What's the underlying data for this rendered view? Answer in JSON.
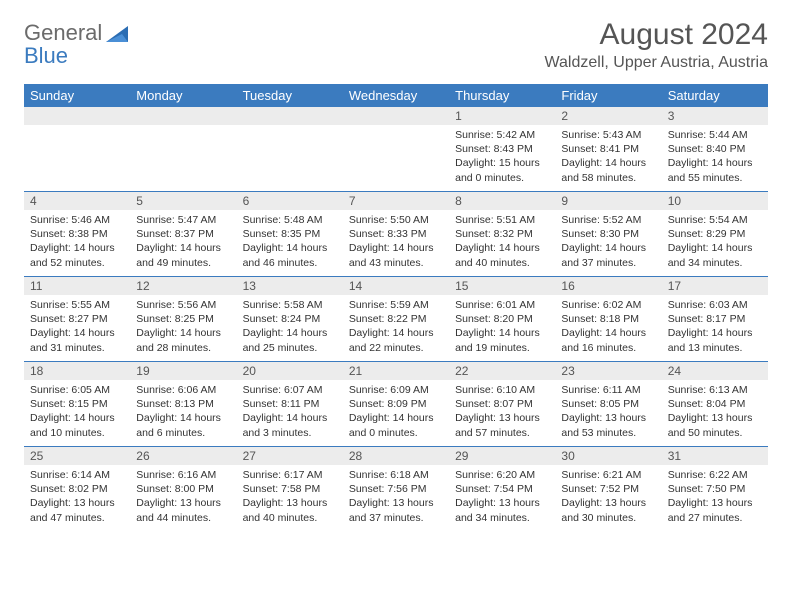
{
  "logo": {
    "text1": "General",
    "text2": "Blue"
  },
  "title": "August 2024",
  "location": "Waldzell, Upper Austria, Austria",
  "colors": {
    "header_bg": "#3b7bbf",
    "header_text": "#ffffff",
    "daynum_bg": "#ececec",
    "text": "#333333",
    "row_border": "#3b7bbf",
    "logo_gray": "#6b6b6b",
    "logo_blue": "#3b7bbf"
  },
  "weekdays": [
    "Sunday",
    "Monday",
    "Tuesday",
    "Wednesday",
    "Thursday",
    "Friday",
    "Saturday"
  ],
  "weeks": [
    [
      null,
      null,
      null,
      null,
      {
        "n": "1",
        "sr": "5:42 AM",
        "ss": "8:43 PM",
        "dl": "15 hours and 0 minutes."
      },
      {
        "n": "2",
        "sr": "5:43 AM",
        "ss": "8:41 PM",
        "dl": "14 hours and 58 minutes."
      },
      {
        "n": "3",
        "sr": "5:44 AM",
        "ss": "8:40 PM",
        "dl": "14 hours and 55 minutes."
      }
    ],
    [
      {
        "n": "4",
        "sr": "5:46 AM",
        "ss": "8:38 PM",
        "dl": "14 hours and 52 minutes."
      },
      {
        "n": "5",
        "sr": "5:47 AM",
        "ss": "8:37 PM",
        "dl": "14 hours and 49 minutes."
      },
      {
        "n": "6",
        "sr": "5:48 AM",
        "ss": "8:35 PM",
        "dl": "14 hours and 46 minutes."
      },
      {
        "n": "7",
        "sr": "5:50 AM",
        "ss": "8:33 PM",
        "dl": "14 hours and 43 minutes."
      },
      {
        "n": "8",
        "sr": "5:51 AM",
        "ss": "8:32 PM",
        "dl": "14 hours and 40 minutes."
      },
      {
        "n": "9",
        "sr": "5:52 AM",
        "ss": "8:30 PM",
        "dl": "14 hours and 37 minutes."
      },
      {
        "n": "10",
        "sr": "5:54 AM",
        "ss": "8:29 PM",
        "dl": "14 hours and 34 minutes."
      }
    ],
    [
      {
        "n": "11",
        "sr": "5:55 AM",
        "ss": "8:27 PM",
        "dl": "14 hours and 31 minutes."
      },
      {
        "n": "12",
        "sr": "5:56 AM",
        "ss": "8:25 PM",
        "dl": "14 hours and 28 minutes."
      },
      {
        "n": "13",
        "sr": "5:58 AM",
        "ss": "8:24 PM",
        "dl": "14 hours and 25 minutes."
      },
      {
        "n": "14",
        "sr": "5:59 AM",
        "ss": "8:22 PM",
        "dl": "14 hours and 22 minutes."
      },
      {
        "n": "15",
        "sr": "6:01 AM",
        "ss": "8:20 PM",
        "dl": "14 hours and 19 minutes."
      },
      {
        "n": "16",
        "sr": "6:02 AM",
        "ss": "8:18 PM",
        "dl": "14 hours and 16 minutes."
      },
      {
        "n": "17",
        "sr": "6:03 AM",
        "ss": "8:17 PM",
        "dl": "14 hours and 13 minutes."
      }
    ],
    [
      {
        "n": "18",
        "sr": "6:05 AM",
        "ss": "8:15 PM",
        "dl": "14 hours and 10 minutes."
      },
      {
        "n": "19",
        "sr": "6:06 AM",
        "ss": "8:13 PM",
        "dl": "14 hours and 6 minutes."
      },
      {
        "n": "20",
        "sr": "6:07 AM",
        "ss": "8:11 PM",
        "dl": "14 hours and 3 minutes."
      },
      {
        "n": "21",
        "sr": "6:09 AM",
        "ss": "8:09 PM",
        "dl": "14 hours and 0 minutes."
      },
      {
        "n": "22",
        "sr": "6:10 AM",
        "ss": "8:07 PM",
        "dl": "13 hours and 57 minutes."
      },
      {
        "n": "23",
        "sr": "6:11 AM",
        "ss": "8:05 PM",
        "dl": "13 hours and 53 minutes."
      },
      {
        "n": "24",
        "sr": "6:13 AM",
        "ss": "8:04 PM",
        "dl": "13 hours and 50 minutes."
      }
    ],
    [
      {
        "n": "25",
        "sr": "6:14 AM",
        "ss": "8:02 PM",
        "dl": "13 hours and 47 minutes."
      },
      {
        "n": "26",
        "sr": "6:16 AM",
        "ss": "8:00 PM",
        "dl": "13 hours and 44 minutes."
      },
      {
        "n": "27",
        "sr": "6:17 AM",
        "ss": "7:58 PM",
        "dl": "13 hours and 40 minutes."
      },
      {
        "n": "28",
        "sr": "6:18 AM",
        "ss": "7:56 PM",
        "dl": "13 hours and 37 minutes."
      },
      {
        "n": "29",
        "sr": "6:20 AM",
        "ss": "7:54 PM",
        "dl": "13 hours and 34 minutes."
      },
      {
        "n": "30",
        "sr": "6:21 AM",
        "ss": "7:52 PM",
        "dl": "13 hours and 30 minutes."
      },
      {
        "n": "31",
        "sr": "6:22 AM",
        "ss": "7:50 PM",
        "dl": "13 hours and 27 minutes."
      }
    ]
  ],
  "labels": {
    "sunrise": "Sunrise:",
    "sunset": "Sunset:",
    "daylight": "Daylight:"
  }
}
